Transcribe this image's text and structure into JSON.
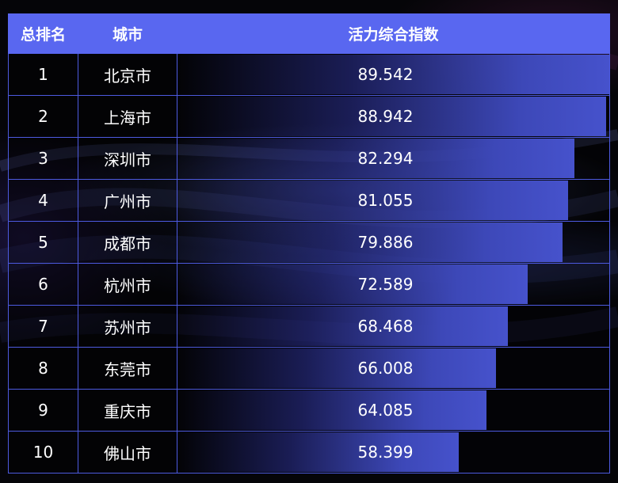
{
  "table": {
    "headers": {
      "rank": "总排名",
      "city": "城市",
      "score": "活力综合指数"
    }
  },
  "chart_data": {
    "type": "table",
    "bar_max": 89.542,
    "rows": [
      {
        "rank": "1",
        "city": "北京市",
        "score": "89.542",
        "value": 89.542
      },
      {
        "rank": "2",
        "city": "上海市",
        "score": "88.942",
        "value": 88.942
      },
      {
        "rank": "3",
        "city": "深圳市",
        "score": "82.294",
        "value": 82.294
      },
      {
        "rank": "4",
        "city": "广州市",
        "score": "81.055",
        "value": 81.055
      },
      {
        "rank": "5",
        "city": "成都市",
        "score": "79.886",
        "value": 79.886
      },
      {
        "rank": "6",
        "city": "杭州市",
        "score": "72.589",
        "value": 72.589
      },
      {
        "rank": "7",
        "city": "苏州市",
        "score": "68.468",
        "value": 68.468
      },
      {
        "rank": "8",
        "city": "东莞市",
        "score": "66.008",
        "value": 66.008
      },
      {
        "rank": "9",
        "city": "重庆市",
        "score": "64.085",
        "value": 64.085
      },
      {
        "rank": "10",
        "city": "佛山市",
        "score": "58.399",
        "value": 58.399
      }
    ]
  },
  "colors": {
    "header_bg": "#5967f0",
    "grid_line": "#4d5ae0",
    "bar": "#4652cc"
  }
}
